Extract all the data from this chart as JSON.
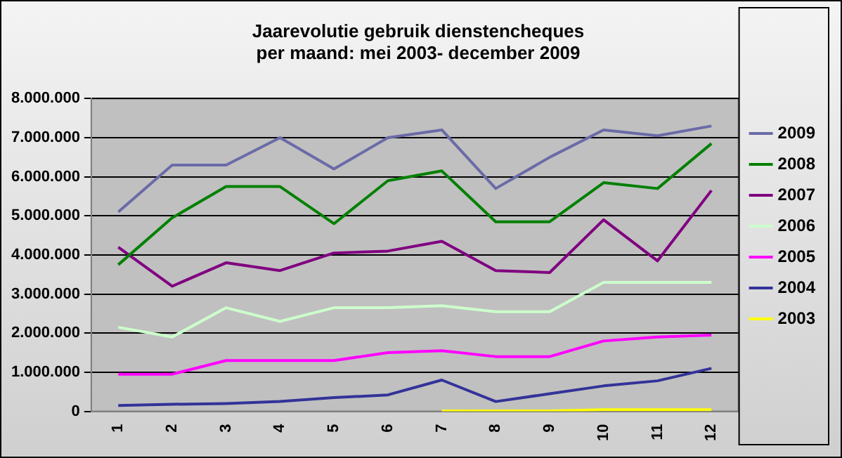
{
  "chart_data": {
    "type": "line",
    "title": [
      "Jaarevolutie gebruik dienstencheques",
      "per maand: mei 2003- december 2009"
    ],
    "categories": [
      "1",
      "2",
      "3",
      "4",
      "5",
      "6",
      "7",
      "8",
      "9",
      "10",
      "11",
      "12"
    ],
    "series": [
      {
        "name": "2009",
        "color": "#6b6ba8",
        "values": [
          5100000,
          6300000,
          6300000,
          7000000,
          6200000,
          7000000,
          7200000,
          5700000,
          6500000,
          7200000,
          7050000,
          7300000
        ]
      },
      {
        "name": "2008",
        "color": "#008000",
        "values": [
          3750000,
          4950000,
          5750000,
          5750000,
          4800000,
          5900000,
          6150000,
          4850000,
          4850000,
          5850000,
          5700000,
          6850000
        ]
      },
      {
        "name": "2007",
        "color": "#800080",
        "values": [
          4200000,
          3200000,
          3800000,
          3600000,
          4050000,
          4100000,
          4350000,
          3600000,
          3550000,
          4900000,
          3850000,
          5650000
        ]
      },
      {
        "name": "2006",
        "color": "#ccffcc",
        "values": [
          2150000,
          1900000,
          2650000,
          2300000,
          2650000,
          2650000,
          2700000,
          2550000,
          2550000,
          3300000,
          3300000,
          3300000
        ]
      },
      {
        "name": "2005",
        "color": "#ff00ff",
        "values": [
          950000,
          950000,
          1300000,
          1300000,
          1300000,
          1500000,
          1550000,
          1400000,
          1400000,
          1800000,
          1900000,
          1950000
        ]
      },
      {
        "name": "2004",
        "color": "#333399",
        "values": [
          150000,
          180000,
          200000,
          250000,
          350000,
          420000,
          800000,
          250000,
          450000,
          650000,
          780000,
          1100000
        ]
      },
      {
        "name": "2003",
        "color": "#ffff00",
        "values": [
          null,
          null,
          null,
          null,
          null,
          null,
          10000,
          10000,
          10000,
          40000,
          40000,
          40000
        ]
      }
    ],
    "ylim": [
      0,
      8000000
    ],
    "yticks": [
      {
        "value": 0,
        "label": "0"
      },
      {
        "value": 1000000,
        "label": "1.000.000"
      },
      {
        "value": 2000000,
        "label": "2.000.000"
      },
      {
        "value": 3000000,
        "label": "3.000.000"
      },
      {
        "value": 4000000,
        "label": "4.000.000"
      },
      {
        "value": 5000000,
        "label": "5.000.000"
      },
      {
        "value": 6000000,
        "label": "6.000.000"
      },
      {
        "value": 7000000,
        "label": "7.000.000"
      },
      {
        "value": 8000000,
        "label": "8.000.000"
      }
    ],
    "grid": "y",
    "legend": "right",
    "marker": "none",
    "line_style": "solid"
  }
}
